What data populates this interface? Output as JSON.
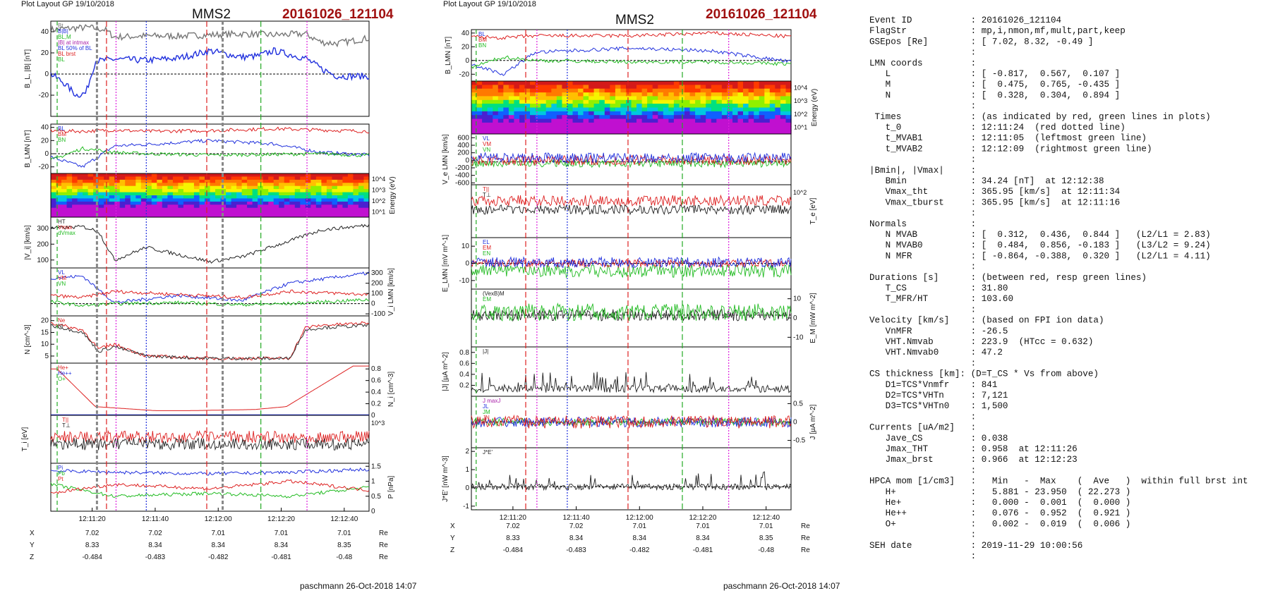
{
  "left": {
    "layout_label": "Plot Layout GP 19/10/2018",
    "spacecraft": "MMS2",
    "event": "20161026_121104",
    "footer": "paschmann 26-Oct-2018 14:07",
    "time_ticks": [
      "12:11:20",
      "12:11:40",
      "12:12:00",
      "12:12:20",
      "12:12:40"
    ],
    "pos_labels": [
      "X",
      "Y",
      "Z"
    ],
    "pos_unit": "Re",
    "pos_X": [
      "7.02",
      "7.02",
      "7.01",
      "7.01",
      "7.01"
    ],
    "pos_Y": [
      "8.33",
      "8.34",
      "8.34",
      "8.34",
      "8.35"
    ],
    "pos_Z": [
      "-0.484",
      "-0.483",
      "-0.482",
      "-0.481",
      "-0.48"
    ]
  },
  "right": {
    "layout_label": "Plot Layout GP 19/10/2018",
    "spacecraft": "MMS2",
    "event": "20161026_121104",
    "footer": "paschmann 26-Oct-2018 14:07",
    "time_ticks": [
      "12:11:20",
      "12:11:40",
      "12:12:00",
      "12:12:20",
      "12:12:40"
    ],
    "pos_labels": [
      "X",
      "Y",
      "Z"
    ],
    "pos_unit": "Re",
    "pos_X": [
      "7.02",
      "7.02",
      "7.01",
      "7.01",
      "7.01"
    ],
    "pos_Y": [
      "8.33",
      "8.34",
      "8.34",
      "8.34",
      "8.35"
    ],
    "pos_Z": [
      "-0.484",
      "-0.483",
      "-0.482",
      "-0.481",
      "-0.48"
    ]
  },
  "info_lines": [
    "Event ID           : 20161026_121104",
    "FlagStr            : mp,i,nmon,mf,mult,part,keep",
    "GSEpos [Re]        : [ 7.02, 8.32, -0.49 ]",
    "                   :",
    "LMN coords         :",
    "   L               : [ -0.817,  0.567,  0.107 ]",
    "   M               : [  0.475,  0.765, -0.435 ]",
    "   N               : [  0.328,  0.304,  0.894 ]",
    "                   :",
    " Times             : (as indicated by red, green lines in plots)",
    "   t_0             : 12:11:24  (red dotted line)",
    "   t_MVAB1         : 12:11:05  (leftmost green line)",
    "   t_MVAB2         : 12:12:09  (rightmost green line)",
    "                   :",
    "|Bmin|, |Vmax|     :",
    "   Bmin            : 34.24 [nT]  at 12:12:38",
    "   Vmax_tht        : 365.95 [km/s]  at 12:11:34",
    "   Vmax_tburst     : 365.95 [km/s]  at 12:11:16",
    "                   :",
    "Normals            :",
    "   N MVAB          : [  0.312,  0.436,  0.844 ]   (L2/L1 = 2.83)",
    "   N MVAB0         : [  0.484,  0.856, -0.183 ]   (L3/L2 = 9.24)",
    "   N MFR           : [ -0.864, -0.388,  0.320 ]   (L2/L1 = 4.11)",
    "                   :",
    "Durations [s]      : (between red, resp green lines)",
    "   T_CS            : 31.80",
    "   T_MFR/HT        : 103.60",
    "                   :",
    "Velocity [km/s]    : (based on FPI ion data)",
    "   VnMFR           : -26.5",
    "   VHT.Nmvab       : 223.9  (HTcc = 0.632)",
    "   VHT.Nmvab0      : 47.2",
    "                   :",
    "CS thickness [km]: (D=T_CS * Vs from above)",
    "   D1=TCS*Vnmfr    : 841",
    "   D2=TCS*VHTn     : 7,121",
    "   D3=TCS*VHTn0    : 1,500",
    "                   :",
    "Currents [uA/m2]   :",
    "   Jave_CS         : 0.038",
    "   Jmax_THT        : 0.958  at 12:11:26",
    "   Jmax_brst       : 0.966  at 12:12:23",
    "                   :",
    "HPCA mom [1/cm3]   :   Min   -  Max    (  Ave   )  within full brst int",
    "   H+              :   5.881 - 23.950  ( 22.273 )",
    "   He+             :   0.000 -  0.001  (  0.000 )",
    "   He++            :   0.076 -  0.952  (  0.921 )",
    "   O+              :   0.002 -  0.019  (  0.006 )",
    "                   :",
    "SEH date           : 2019-11-29 10:00:56",
    "                   :"
  ],
  "chart_data": [
    {
      "type": "line",
      "panel": "B_L, |B|",
      "ylabel": "B_L, |B| [nT]",
      "ylim": [
        -40,
        50
      ],
      "yticks": [
        -20,
        0,
        20,
        40
      ],
      "legend": [
        "Bt",
        "B|B|",
        "BL,M",
        "|B| at intmax",
        "BL 50% of BL",
        "BL brst",
        "BL"
      ],
      "series": [
        {
          "name": "|B|",
          "color": "#777777",
          "x": [
            0,
            0.05,
            0.12,
            0.17,
            0.2,
            0.3,
            0.4,
            0.5,
            0.6,
            0.7,
            0.8,
            0.85,
            0.9,
            1.0
          ],
          "values": [
            42,
            43,
            44,
            42,
            35,
            36,
            36,
            37,
            38,
            37,
            38,
            30,
            29,
            34
          ]
        },
        {
          "name": "BL",
          "color": "#1f2fdd",
          "x": [
            0,
            0.04,
            0.08,
            0.11,
            0.14,
            0.2,
            0.3,
            0.4,
            0.5,
            0.55,
            0.6,
            0.65,
            0.7,
            0.8,
            0.85,
            0.9,
            1.0
          ],
          "values": [
            0,
            -8,
            -20,
            -18,
            12,
            14,
            13,
            15,
            22,
            19,
            16,
            17,
            22,
            15,
            5,
            -2,
            -2
          ]
        }
      ]
    },
    {
      "type": "line",
      "panel": "B_LMN",
      "ylabel": "B_LMN [nT]",
      "ylim": [
        -30,
        45
      ],
      "yticks": [
        -20,
        0,
        20,
        40
      ],
      "legend": [
        "BL",
        "BM",
        "BN"
      ],
      "series": [
        {
          "name": "BL",
          "color": "#2030dd",
          "x": [
            0,
            0.1,
            0.2,
            0.3,
            0.5,
            0.7,
            0.85,
            1.0
          ],
          "values": [
            -5,
            -20,
            12,
            14,
            20,
            15,
            2,
            -2
          ]
        },
        {
          "name": "BM",
          "color": "#dd2020",
          "x": [
            0,
            0.1,
            0.2,
            0.3,
            0.5,
            0.7,
            0.85,
            1.0
          ],
          "values": [
            35,
            34,
            36,
            34,
            35,
            38,
            36,
            34
          ]
        },
        {
          "name": "BN",
          "color": "#22bb22",
          "x": [
            0,
            0.1,
            0.2,
            0.3,
            0.5,
            0.7,
            0.85,
            1.0
          ],
          "values": [
            -10,
            8,
            2,
            0,
            -2,
            -1,
            0,
            -3
          ]
        }
      ]
    },
    {
      "type": "heatmap",
      "panel": "ion energy spectrogram",
      "ylabel": "Energy (eV)",
      "yticks": [
        "10^1",
        "10^2",
        "10^3",
        "10^4"
      ]
    },
    {
      "type": "line",
      "panel": "|Vi|",
      "ylabel": "|V_i| [km/s]",
      "ylim": [
        50,
        370
      ],
      "yticks": [
        100,
        200,
        300
      ],
      "legend": [
        "HT",
        "Vmax",
        "dVmax"
      ],
      "series": [
        {
          "name": "|Vi|",
          "color": "#222222",
          "x": [
            0,
            0.1,
            0.15,
            0.2,
            0.3,
            0.5,
            0.6,
            0.75,
            0.85,
            1.0
          ],
          "values": [
            300,
            310,
            280,
            100,
            180,
            90,
            120,
            220,
            290,
            320
          ]
        }
      ]
    },
    {
      "type": "line",
      "panel": "Vi_LMN",
      "ylabel": "V_i LMN [km/s]",
      "ylim": [
        -120,
        350
      ],
      "yticks": [
        -100,
        0,
        100,
        200,
        300
      ],
      "legend": [
        "VL",
        "VM",
        "VN"
      ],
      "series": [
        {
          "name": "VL",
          "color": "#2030dd",
          "x": [
            0,
            0.1,
            0.2,
            0.4,
            0.6,
            0.75,
            1.0
          ],
          "values": [
            250,
            270,
            10,
            80,
            30,
            200,
            300
          ]
        },
        {
          "name": "VM",
          "color": "#dd2020",
          "x": [
            0,
            0.1,
            0.2,
            0.4,
            0.6,
            0.75,
            1.0
          ],
          "values": [
            80,
            60,
            120,
            90,
            60,
            120,
            90
          ]
        },
        {
          "name": "VN",
          "color": "#22bb22",
          "x": [
            0,
            0.1,
            0.2,
            0.4,
            0.6,
            0.75,
            1.0
          ],
          "values": [
            20,
            -20,
            0,
            10,
            -10,
            0,
            40
          ]
        }
      ]
    },
    {
      "type": "line",
      "panel": "N",
      "ylabel": "N [cm^-3]",
      "ylim": [
        2,
        22
      ],
      "yticks": [
        5,
        10,
        15,
        20
      ],
      "legend": [
        "Ne",
        "Ni"
      ],
      "series": [
        {
          "name": "Ne",
          "color": "#dd2020",
          "x": [
            0,
            0.1,
            0.15,
            0.2,
            0.3,
            0.5,
            0.75,
            0.8,
            0.85,
            1.0
          ],
          "values": [
            19,
            16,
            8,
            10,
            5,
            4,
            4,
            17,
            18,
            19
          ]
        },
        {
          "name": "Ni",
          "color": "#333333",
          "x": [
            0,
            0.1,
            0.15,
            0.2,
            0.3,
            0.5,
            0.75,
            0.8,
            0.85,
            1.0
          ],
          "values": [
            18,
            15,
            7,
            9,
            5,
            4,
            4,
            16,
            17,
            18
          ]
        }
      ]
    },
    {
      "type": "line",
      "panel": "Ni HPCA",
      "ylabel": "N_i [cm^-3]",
      "ylim": [
        0,
        0.9
      ],
      "yticks": [
        0.0,
        0.2,
        0.4,
        0.6,
        0.8
      ],
      "legend": [
        "He+",
        "He++",
        "O+"
      ],
      "series": [
        {
          "name": "He++",
          "color": "#dd2020",
          "x": [
            0.02,
            0.14,
            0.33,
            0.43,
            0.64,
            0.74,
            0.95
          ],
          "values": [
            0.8,
            0.15,
            0.08,
            0.08,
            0.1,
            0.15,
            0.85
          ]
        },
        {
          "name": "O+",
          "color": "#2030dd",
          "x": [
            0.02,
            0.14,
            0.33,
            0.43,
            0.64,
            0.74,
            0.95
          ],
          "values": [
            0.01,
            0.01,
            0.01,
            0.01,
            0.01,
            0.01,
            0.01
          ]
        }
      ]
    },
    {
      "type": "line",
      "panel": "Ti",
      "ylabel": "T_i [eV]",
      "yticks": [
        "10^3"
      ],
      "legend": [
        "T||",
        "T⊥"
      ],
      "series": [
        {
          "name": "T||",
          "color": "#dd2020",
          "x": [
            0,
            0.15,
            0.2,
            0.5,
            0.75,
            0.82,
            1.0
          ],
          "values": [
            0.6,
            0.5,
            0.75,
            0.8,
            0.75,
            0.4,
            0.5
          ]
        },
        {
          "name": "T⊥",
          "color": "#222222",
          "x": [
            0,
            0.15,
            0.2,
            0.5,
            0.75,
            0.82,
            1.0
          ],
          "values": [
            0.5,
            0.4,
            0.65,
            0.7,
            0.65,
            0.3,
            0.4
          ]
        }
      ]
    },
    {
      "type": "line",
      "panel": "P",
      "ylabel": "P [nPa]",
      "ylim": [
        0,
        1.6
      ],
      "yticks": [
        0.0,
        0.5,
        1.0,
        1.5
      ],
      "legend": [
        "Pi",
        "Pb",
        "Pt"
      ],
      "series": [
        {
          "name": "Pt",
          "color": "#2030dd",
          "x": [
            0,
            0.2,
            0.5,
            0.75,
            1.0
          ],
          "values": [
            1.35,
            1.3,
            1.25,
            1.3,
            1.4
          ]
        },
        {
          "name": "Pb",
          "color": "#22bb22",
          "x": [
            0,
            0.2,
            0.5,
            0.75,
            1.0
          ],
          "values": [
            0.9,
            0.5,
            0.6,
            0.5,
            0.8
          ]
        },
        {
          "name": "Pi",
          "color": "#dd2020",
          "x": [
            0,
            0.2,
            0.5,
            0.75,
            1.0
          ],
          "values": [
            0.6,
            0.9,
            0.75,
            1.0,
            0.7
          ]
        }
      ]
    },
    {
      "type": "line",
      "panel": "B_LMN (right)",
      "ylabel": "B_LMN [nT]",
      "ylim": [
        -30,
        45
      ],
      "yticks": [
        -20,
        0,
        20,
        40
      ],
      "legend": [
        "BL",
        "BM",
        "BN"
      ],
      "series": [
        {
          "name": "BL",
          "color": "#2030dd",
          "x": [
            0,
            0.1,
            0.2,
            0.5,
            0.75,
            1.0
          ],
          "values": [
            -5,
            -20,
            12,
            18,
            14,
            -2
          ]
        },
        {
          "name": "BM",
          "color": "#dd2020",
          "x": [
            0,
            0.1,
            0.2,
            0.5,
            0.75,
            1.0
          ],
          "values": [
            35,
            33,
            36,
            36,
            40,
            35
          ]
        },
        {
          "name": "BN",
          "color": "#22bb22",
          "x": [
            0,
            0.1,
            0.2,
            0.5,
            0.75,
            1.0
          ],
          "values": [
            -10,
            5,
            0,
            -2,
            -2,
            -5
          ]
        }
      ]
    },
    {
      "type": "heatmap",
      "panel": "electron energy spectrogram",
      "ylabel": "Energy (eV)",
      "yticks": [
        "10^1",
        "10^2",
        "10^3",
        "10^4"
      ]
    },
    {
      "type": "line",
      "panel": "Ve_LMN",
      "ylabel": "V_e LMN [km/s]",
      "ylim": [
        -650,
        700
      ],
      "yticks": [
        -600,
        -400,
        -200,
        0,
        200,
        400,
        600
      ],
      "legend": [
        "VL",
        "VM",
        "VN"
      ]
    },
    {
      "type": "line",
      "panel": "Te",
      "ylabel": "T_e [eV]",
      "yticks": [
        "10^2"
      ],
      "legend": [
        "T||",
        "T⊥"
      ]
    },
    {
      "type": "line",
      "panel": "E_LMN",
      "ylabel": "E_LMN [mV m^-1]",
      "ylim": [
        -15,
        15
      ],
      "yticks": [
        -10,
        0,
        10
      ],
      "legend": [
        "EL",
        "EM",
        "EN"
      ]
    },
    {
      "type": "line",
      "panel": "E_M",
      "ylabel": "E_M [mW m^-2]",
      "ylim": [
        -15,
        15
      ],
      "yticks": [
        -10,
        0,
        10
      ],
      "legend": [
        "(VexB)M",
        "EM"
      ]
    },
    {
      "type": "line",
      "panel": "|J|",
      "ylabel": "|J| [µA m^-2]",
      "ylim": [
        0,
        0.9
      ],
      "yticks": [
        0.2,
        0.4,
        0.6,
        0.8
      ],
      "legend": [
        "|J|"
      ]
    },
    {
      "type": "line",
      "panel": "J",
      "ylabel": "J [µA m^-2]",
      "ylim": [
        -0.7,
        0.7
      ],
      "yticks": [
        -0.5,
        0.0,
        0.5
      ],
      "legend": [
        "J maxJ",
        "JL",
        "JM",
        "JN"
      ]
    },
    {
      "type": "line",
      "panel": "J*E'",
      "ylabel": "J*E' [nW m^-3]",
      "ylim": [
        -1.2,
        2.2
      ],
      "yticks": [
        -1,
        0,
        1,
        2
      ],
      "legend": [
        "J*E'"
      ]
    }
  ]
}
